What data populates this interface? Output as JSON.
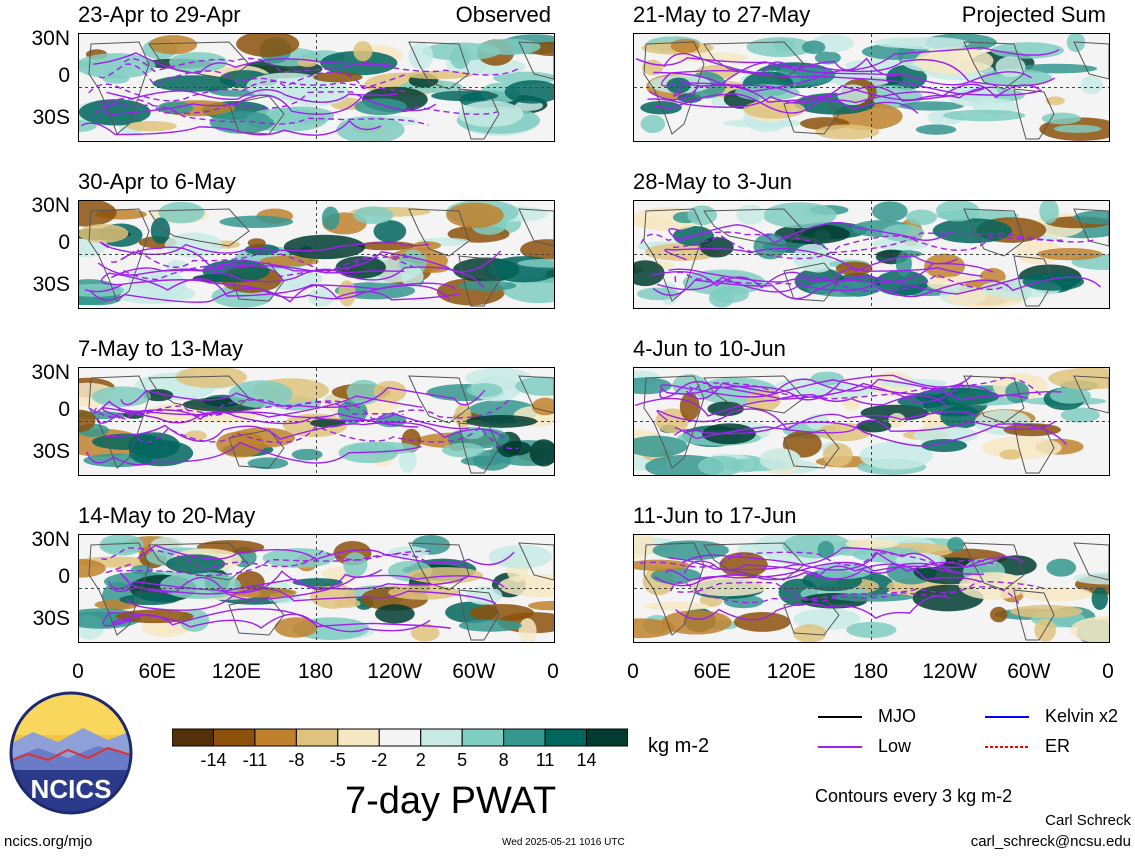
{
  "panels_left": [
    {
      "title": "23-Apr to 29-Apr",
      "tag": "Observed"
    },
    {
      "title": "30-Apr to 6-May",
      "tag": ""
    },
    {
      "title": "7-May to 13-May",
      "tag": ""
    },
    {
      "title": "14-May to 20-May",
      "tag": ""
    }
  ],
  "panels_right": [
    {
      "title": "21-May to 27-May",
      "tag": "Projected Sum"
    },
    {
      "title": "28-May to 3-Jun",
      "tag": ""
    },
    {
      "title": "4-Jun to 10-Jun",
      "tag": ""
    },
    {
      "title": "11-Jun to 17-Jun",
      "tag": ""
    }
  ],
  "y_ticks": [
    "30N",
    "0",
    "30S"
  ],
  "x_ticks": [
    "0",
    "60E",
    "120E",
    "180",
    "120W",
    "60W",
    "0"
  ],
  "colorbar": {
    "ticks": [
      "-14",
      "-11",
      "-8",
      "-5",
      "-2",
      "2",
      "5",
      "8",
      "11",
      "14"
    ],
    "colors": [
      "#54300a",
      "#8c510a",
      "#bf812d",
      "#dfc27d",
      "#f6e8c3",
      "#f5f5f5",
      "#c7eae5",
      "#80cdc1",
      "#35978f",
      "#01665e",
      "#003c30"
    ],
    "units": "kg m-2"
  },
  "title": "7-day PWAT",
  "legend": {
    "items": [
      {
        "label": "MJO",
        "color": "#000000"
      },
      {
        "label": "Kelvin x2",
        "color": "#0000ff"
      },
      {
        "label": "Low",
        "color": "#a020f0"
      },
      {
        "label": "ER",
        "color": "#ff0000"
      }
    ],
    "contours_note": "Contours every 3 kg m-2"
  },
  "footer": {
    "logo_text": "NCICS",
    "url": "ncics.org/mjo",
    "timestamp": "Wed 2025-05-21 1016 UTC",
    "author": "Carl Schreck",
    "email": "carl_schreck@ncsu.edu"
  },
  "chart_data": {
    "type": "heatmap",
    "variable": "7-day PWAT anomaly",
    "units": "kg m-2",
    "x_axis": [
      "0",
      "60E",
      "120E",
      "180",
      "120W",
      "60W",
      "0"
    ],
    "y_axis": [
      "30N",
      "0",
      "30S"
    ],
    "color_levels": [
      -14,
      -11,
      -8,
      -5,
      -2,
      2,
      5,
      8,
      11,
      14
    ],
    "panels": [
      "23-Apr to 29-Apr",
      "30-Apr to 6-May",
      "7-May to 13-May",
      "14-May to 20-May",
      "21-May to 27-May",
      "28-May to 3-Jun",
      "4-Jun to 10-Jun",
      "11-Jun to 17-Jun"
    ]
  }
}
